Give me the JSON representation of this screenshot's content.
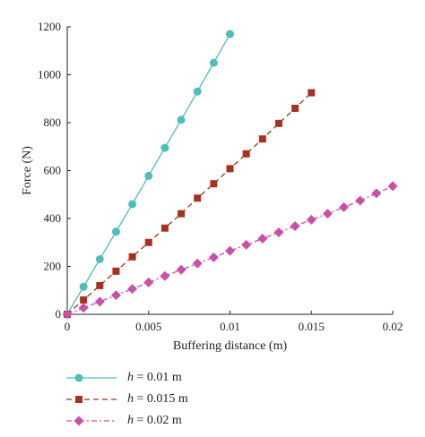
{
  "chart_data": {
    "type": "line",
    "xlabel": "Buffering distance (m)",
    "ylabel": "Force (N)",
    "xlim": [
      0,
      0.02
    ],
    "ylim": [
      0,
      1200
    ],
    "x_ticks": [
      "0",
      "0.005",
      "0.01",
      "0.015",
      "0.02"
    ],
    "y_ticks": [
      "0",
      "200",
      "400",
      "600",
      "800",
      "1000",
      "1200"
    ],
    "grid": false,
    "legend_position": "bottom-left",
    "series": [
      {
        "name": "h = 0.01 m",
        "name_var": "h",
        "name_rest": " = 0.01 m",
        "color": "#4cbfb8",
        "line_style": "solid",
        "marker": "circle",
        "x": [
          0,
          0.001,
          0.002,
          0.003,
          0.004,
          0.005,
          0.006,
          0.007,
          0.008,
          0.009,
          0.01
        ],
        "y": [
          0,
          115,
          230,
          345,
          460,
          578,
          695,
          812,
          930,
          1050,
          1170
        ]
      },
      {
        "name": "h = 0.015 m",
        "name_var": "h",
        "name_rest": " = 0.015 m",
        "color": "#a5321f",
        "line_style": "dashed",
        "marker": "square",
        "x": [
          0,
          0.001,
          0.002,
          0.003,
          0.004,
          0.005,
          0.006,
          0.007,
          0.008,
          0.009,
          0.01,
          0.011,
          0.012,
          0.013,
          0.014,
          0.015
        ],
        "y": [
          0,
          60,
          120,
          180,
          240,
          300,
          360,
          420,
          485,
          545,
          608,
          670,
          732,
          797,
          860,
          925
        ]
      },
      {
        "name": "h = 0.02 m",
        "name_var": "h",
        "name_rest": " = 0.02 m",
        "color": "#c94fa8",
        "line_style": "dashdot",
        "marker": "diamond",
        "x": [
          0,
          0.001,
          0.002,
          0.003,
          0.004,
          0.005,
          0.006,
          0.007,
          0.008,
          0.009,
          0.01,
          0.011,
          0.012,
          0.013,
          0.014,
          0.015,
          0.016,
          0.017,
          0.018,
          0.019,
          0.02
        ],
        "y": [
          0,
          27,
          53,
          80,
          106,
          133,
          160,
          186,
          212,
          238,
          265,
          290,
          316,
          342,
          368,
          395,
          420,
          447,
          475,
          505,
          535
        ]
      }
    ]
  }
}
